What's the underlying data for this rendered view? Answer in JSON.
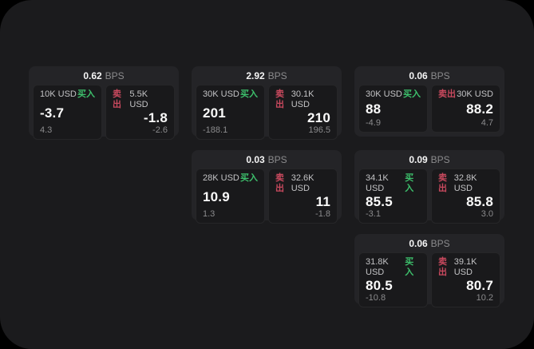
{
  "labels": {
    "bps": "BPS",
    "buy": "买入",
    "sell": "卖出"
  },
  "colors": {
    "buy_green": "#3dc06c",
    "sell_red": "#c9495e",
    "page_bg": "#1b1b1d",
    "card_bg": "#242427",
    "panel_bg": "#19191b"
  },
  "cards": [
    {
      "bps": "0.62",
      "buy": {
        "size": "10K USD",
        "price": "-3.7",
        "delta": "4.3"
      },
      "sell": {
        "size": "5.5K USD",
        "price": "-1.8",
        "delta": "-2.6"
      }
    },
    {
      "bps": "2.92",
      "buy": {
        "size": "30K USD",
        "price": "201",
        "delta": "-188.1"
      },
      "sell": {
        "size": "30.1K USD",
        "price": "210",
        "delta": "196.5"
      }
    },
    {
      "bps": "0.06",
      "buy": {
        "size": "30K USD",
        "price": "88",
        "delta": "-4.9"
      },
      "sell": {
        "size": "30K USD",
        "price": "88.2",
        "delta": "4.7"
      }
    },
    {
      "bps": "0.03",
      "buy": {
        "size": "28K USD",
        "price": "10.9",
        "delta": "1.3"
      },
      "sell": {
        "size": "32.6K USD",
        "price": "11",
        "delta": "-1.8"
      }
    },
    {
      "bps": "0.09",
      "buy": {
        "size": "34.1K USD",
        "price": "85.5",
        "delta": "-3.1"
      },
      "sell": {
        "size": "32.8K USD",
        "price": "85.8",
        "delta": "3.0"
      }
    },
    {
      "bps": "0.06",
      "buy": {
        "size": "31.8K USD",
        "price": "80.5",
        "delta": "-10.8"
      },
      "sell": {
        "size": "39.1K USD",
        "price": "80.7",
        "delta": "10.2"
      }
    }
  ]
}
